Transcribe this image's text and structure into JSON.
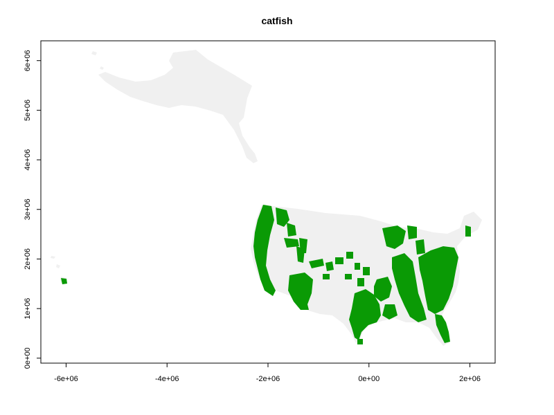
{
  "title": "catfish",
  "colors": {
    "land": "#f0f0f0",
    "presence": "#0a9a05",
    "axis": "#000000",
    "background": "#ffffff"
  },
  "axes": {
    "x": {
      "range": [
        -6500000,
        2500000
      ],
      "ticks": [
        -6000000,
        -4000000,
        -2000000,
        0,
        2000000
      ],
      "tick_labels": [
        "-6e+06",
        "-4e+06",
        "-2e+06",
        "0e+00",
        "2e+06"
      ]
    },
    "y": {
      "range": [
        -100000,
        6400000
      ],
      "ticks": [
        0,
        1000000,
        2000000,
        3000000,
        4000000,
        5000000,
        6000000
      ],
      "tick_labels": [
        "0e+00",
        "1e+06",
        "2e+06",
        "3e+06",
        "4e+06",
        "5e+06",
        "6e+06"
      ]
    }
  }
}
